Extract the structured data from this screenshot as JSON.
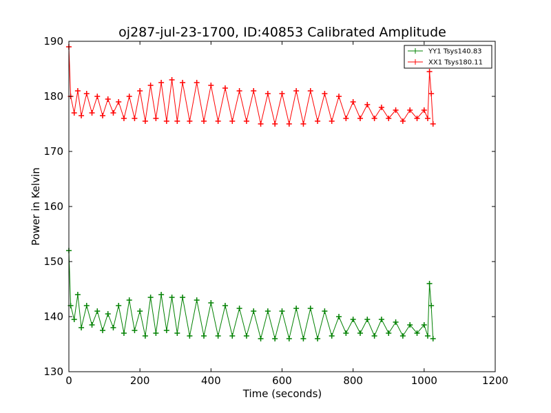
{
  "chart_data": {
    "type": "line",
    "title": "oj287-jul-23-1700, ID:40853 Calibrated Amplitude",
    "xlabel": "Time (seconds)",
    "ylabel": "Power in Kelvin",
    "xlim": [
      0,
      1200
    ],
    "ylim": [
      130,
      190
    ],
    "xticks": [
      0,
      200,
      400,
      600,
      800,
      1000,
      1200
    ],
    "yticks": [
      130,
      140,
      150,
      160,
      170,
      180,
      190
    ],
    "grid": false,
    "legend_position": "top-right",
    "marker": "plus",
    "series": [
      {
        "name": "YY1 Tsys140.83",
        "color": "#008000",
        "x": [
          0,
          5,
          15,
          25,
          35,
          50,
          65,
          80,
          95,
          110,
          125,
          140,
          155,
          170,
          185,
          200,
          215,
          230,
          245,
          260,
          275,
          290,
          305,
          320,
          340,
          360,
          380,
          400,
          420,
          440,
          460,
          480,
          500,
          520,
          540,
          560,
          580,
          600,
          620,
          640,
          660,
          680,
          700,
          720,
          740,
          760,
          780,
          800,
          820,
          840,
          860,
          880,
          900,
          920,
          940,
          960,
          980,
          1000,
          1010,
          1015,
          1020,
          1025
        ],
        "y": [
          152,
          142,
          139.5,
          144,
          138,
          142,
          138.5,
          141,
          137.5,
          140.5,
          138,
          142,
          137,
          143,
          137.5,
          141,
          136.5,
          143.5,
          137,
          144,
          137.5,
          143.5,
          137,
          143.5,
          136.5,
          143,
          136.5,
          142.5,
          136.5,
          142,
          136.5,
          141.5,
          136.5,
          141,
          136,
          141,
          136,
          141,
          136,
          141.5,
          136,
          141.5,
          136,
          141,
          136.5,
          140,
          137,
          139.5,
          137,
          139.5,
          136.5,
          139.5,
          137,
          139,
          136.5,
          138.5,
          137,
          138.5,
          136.5,
          146,
          142,
          136
        ]
      },
      {
        "name": "XX1 Tsys180.11",
        "color": "#ff0000",
        "x": [
          0,
          5,
          15,
          25,
          35,
          50,
          65,
          80,
          95,
          110,
          125,
          140,
          155,
          170,
          185,
          200,
          215,
          230,
          245,
          260,
          275,
          290,
          305,
          320,
          340,
          360,
          380,
          400,
          420,
          440,
          460,
          480,
          500,
          520,
          540,
          560,
          580,
          600,
          620,
          640,
          660,
          680,
          700,
          720,
          740,
          760,
          780,
          800,
          820,
          840,
          860,
          880,
          900,
          920,
          940,
          960,
          980,
          1000,
          1010,
          1015,
          1020,
          1025
        ],
        "y": [
          189,
          180,
          177,
          181,
          176.5,
          180.5,
          177,
          180,
          176.5,
          179.5,
          177,
          179,
          176,
          180,
          176,
          181,
          175.5,
          182,
          176,
          182.5,
          175.5,
          183,
          175.5,
          182.5,
          175.5,
          182.5,
          175.5,
          182,
          175.5,
          181.5,
          175.5,
          181,
          175.5,
          181,
          175,
          180.5,
          175,
          180.5,
          175,
          181,
          175,
          181,
          175.5,
          180.5,
          175.5,
          180,
          176,
          179,
          176,
          178.5,
          176,
          178,
          176,
          177.5,
          175.5,
          177.5,
          176,
          177.5,
          176,
          184.5,
          180.5,
          175
        ]
      }
    ]
  }
}
